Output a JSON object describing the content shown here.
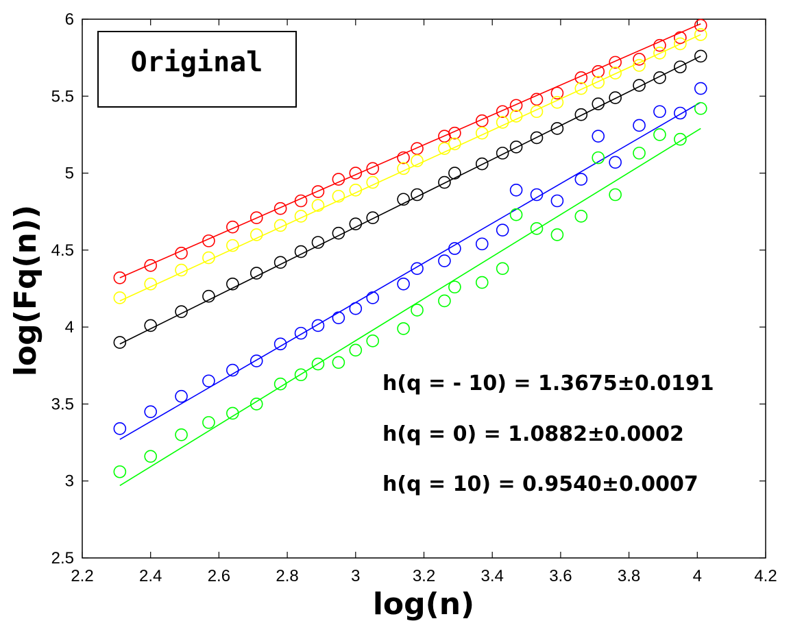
{
  "chart_data": {
    "type": "scatter",
    "title": "",
    "xlabel": "log(n)",
    "ylabel": "log(Fq(n))",
    "xlim": [
      2.2,
      4.2
    ],
    "ylim": [
      2.5,
      6
    ],
    "xticks": [
      "2.2",
      "2.4",
      "2.6",
      "2.8",
      "3",
      "3.2",
      "3.4",
      "3.6",
      "3.8",
      "4",
      "4.2"
    ],
    "yticks": [
      "2.5",
      "3",
      "3.5",
      "4",
      "4.5",
      "5",
      "5.5",
      "6"
    ],
    "grid": false,
    "legend": {
      "label": "Original",
      "position": "top-left"
    },
    "annotations": [
      "h(q = - 10) = 1.3675±0.0191",
      "h(q = 0) = 1.0882±0.0002",
      "h(q = 10) = 0.9540±0.0007"
    ],
    "series": [
      {
        "color": "#ff0000",
        "x": [
          2.31,
          2.4,
          2.49,
          2.57,
          2.64,
          2.71,
          2.78,
          2.84,
          2.89,
          2.95,
          3.0,
          3.05,
          3.14,
          3.18,
          3.26,
          3.29,
          3.37,
          3.43,
          3.47,
          3.53,
          3.59,
          3.66,
          3.71,
          3.76,
          3.83,
          3.89,
          3.95,
          4.01
        ],
        "y": [
          4.32,
          4.4,
          4.48,
          4.56,
          4.65,
          4.71,
          4.77,
          4.82,
          4.88,
          4.96,
          5.0,
          5.03,
          5.1,
          5.16,
          5.24,
          5.26,
          5.34,
          5.4,
          5.44,
          5.48,
          5.52,
          5.62,
          5.66,
          5.72,
          5.74,
          5.83,
          5.88,
          5.96
        ],
        "fit": [
          [
            2.31,
            4.32
          ],
          [
            4.01,
            5.97
          ]
        ]
      },
      {
        "color": "#ffff00",
        "x": [
          2.31,
          2.4,
          2.49,
          2.57,
          2.64,
          2.71,
          2.78,
          2.84,
          2.89,
          2.95,
          3.0,
          3.05,
          3.14,
          3.18,
          3.26,
          3.29,
          3.37,
          3.43,
          3.47,
          3.53,
          3.59,
          3.66,
          3.71,
          3.76,
          3.83,
          3.89,
          3.95,
          4.01
        ],
        "y": [
          4.19,
          4.28,
          4.37,
          4.45,
          4.53,
          4.6,
          4.66,
          4.72,
          4.79,
          4.85,
          4.89,
          4.94,
          5.03,
          5.08,
          5.16,
          5.19,
          5.26,
          5.33,
          5.37,
          5.4,
          5.46,
          5.55,
          5.59,
          5.65,
          5.7,
          5.78,
          5.84,
          5.9
        ],
        "fit": [
          [
            2.31,
            4.17
          ],
          [
            4.01,
            5.9
          ]
        ]
      },
      {
        "color": "#000000",
        "x": [
          2.31,
          2.4,
          2.49,
          2.57,
          2.64,
          2.71,
          2.78,
          2.84,
          2.89,
          2.95,
          3.0,
          3.05,
          3.14,
          3.18,
          3.26,
          3.29,
          3.37,
          3.43,
          3.47,
          3.53,
          3.59,
          3.66,
          3.71,
          3.76,
          3.83,
          3.89,
          3.95,
          4.01
        ],
        "y": [
          3.9,
          4.01,
          4.1,
          4.2,
          4.28,
          4.35,
          4.42,
          4.49,
          4.55,
          4.61,
          4.67,
          4.71,
          4.83,
          4.86,
          4.94,
          5.0,
          5.06,
          5.13,
          5.17,
          5.23,
          5.29,
          5.38,
          5.45,
          5.49,
          5.57,
          5.62,
          5.69,
          5.76
        ],
        "fit": [
          [
            2.31,
            3.89
          ],
          [
            4.01,
            5.76
          ]
        ]
      },
      {
        "color": "#0000ff",
        "x": [
          2.31,
          2.4,
          2.49,
          2.57,
          2.64,
          2.71,
          2.78,
          2.84,
          2.89,
          2.95,
          3.0,
          3.05,
          3.14,
          3.18,
          3.26,
          3.29,
          3.37,
          3.43,
          3.47,
          3.53,
          3.59,
          3.66,
          3.71,
          3.76,
          3.83,
          3.89,
          3.95,
          4.01
        ],
        "y": [
          3.34,
          3.45,
          3.55,
          3.65,
          3.72,
          3.78,
          3.89,
          3.96,
          4.01,
          4.06,
          4.12,
          4.19,
          4.28,
          4.38,
          4.43,
          4.51,
          4.54,
          4.63,
          4.89,
          4.86,
          4.82,
          4.96,
          5.24,
          5.07,
          5.31,
          5.4,
          5.39,
          5.55
        ],
        "fit": [
          [
            2.31,
            3.27
          ],
          [
            4.01,
            5.46
          ]
        ]
      },
      {
        "color": "#00ff00",
        "x": [
          2.31,
          2.4,
          2.49,
          2.57,
          2.64,
          2.71,
          2.78,
          2.84,
          2.89,
          2.95,
          3.0,
          3.05,
          3.14,
          3.18,
          3.26,
          3.29,
          3.37,
          3.43,
          3.47,
          3.53,
          3.59,
          3.66,
          3.71,
          3.76,
          3.83,
          3.89,
          3.95,
          4.01
        ],
        "y": [
          3.06,
          3.16,
          3.3,
          3.38,
          3.44,
          3.5,
          3.63,
          3.69,
          3.76,
          3.77,
          3.85,
          3.91,
          3.99,
          4.11,
          4.17,
          4.26,
          4.29,
          4.38,
          4.73,
          4.64,
          4.6,
          4.72,
          5.1,
          4.86,
          5.13,
          5.25,
          5.22,
          5.42
        ],
        "fit": [
          [
            2.31,
            2.97
          ],
          [
            4.01,
            5.29
          ]
        ]
      }
    ]
  }
}
